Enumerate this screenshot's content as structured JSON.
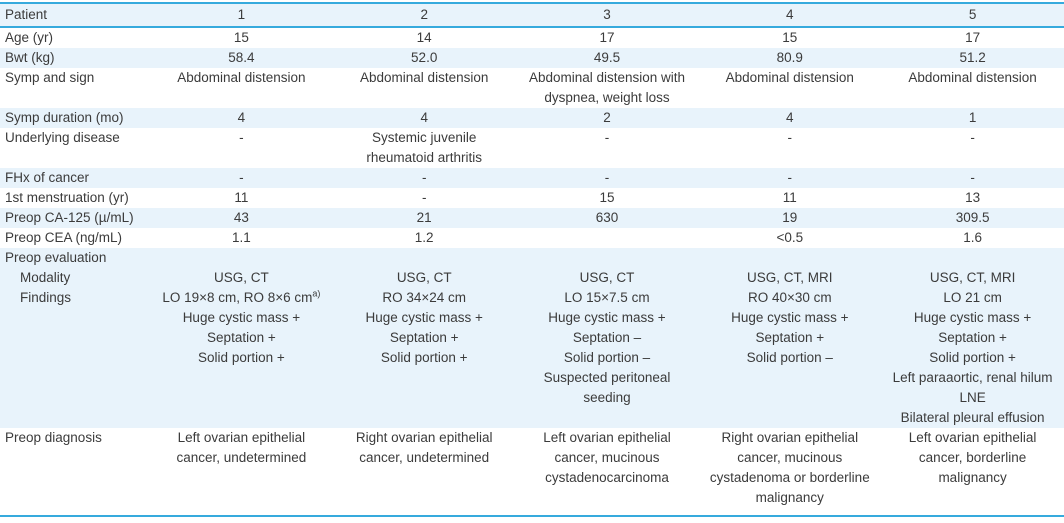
{
  "style": {
    "accent_border_color": "#36aadd",
    "stripe_background": "#e8f3fb",
    "text_color": "#3b3b3b"
  },
  "table": {
    "header": {
      "label": "Patient",
      "columns": [
        "1",
        "2",
        "3",
        "4",
        "5"
      ]
    },
    "rows": [
      {
        "label": "Age (yr)",
        "values": [
          "15",
          "14",
          "17",
          "15",
          "17"
        ]
      },
      {
        "label": "Bwt (kg)",
        "values": [
          "58.4",
          "52.0",
          "49.5",
          "80.9",
          "51.2"
        ]
      },
      {
        "label": "Symp and sign",
        "values": [
          "Abdominal distension",
          "Abdominal distension",
          "Abdominal distension with dyspnea, weight loss",
          "Abdominal distension",
          "Abdominal distension"
        ]
      },
      {
        "label": "Symp duration (mo)",
        "values": [
          "4",
          "4",
          "2",
          "4",
          "1"
        ]
      },
      {
        "label": "Underlying disease",
        "values": [
          "-",
          "Systemic juvenile rheumatoid arthritis",
          "-",
          "-",
          "-"
        ]
      },
      {
        "label": "FHx of cancer",
        "values": [
          "-",
          "-",
          "-",
          "-",
          "-"
        ]
      },
      {
        "label": "1st menstruation (yr)",
        "values": [
          "11",
          "-",
          "15",
          "11",
          "13"
        ]
      },
      {
        "label": "Preop CA-125 (µ/mL)",
        "values": [
          "43",
          "21",
          "630",
          "19",
          "309.5"
        ]
      },
      {
        "label": "Preop CEA (ng/mL)",
        "values": [
          "1.1",
          "1.2",
          "",
          "<0.5",
          "1.6"
        ]
      }
    ],
    "preop_evaluation": {
      "label": "Preop evaluation",
      "modality": {
        "label": "Modality",
        "values": [
          "USG, CT",
          "USG, CT",
          "USG, CT",
          "USG, CT, MRI",
          "USG, CT, MRI"
        ]
      },
      "findings": {
        "label": "Findings",
        "sup": "a)",
        "line1": [
          "LO 19×8 cm, RO 8×6 cm",
          "RO 34×24 cm",
          "LO 15×7.5 cm",
          "RO 40×30 cm",
          "LO 21 cm"
        ],
        "line2": [
          "Huge cystic mass +",
          "Huge cystic mass +",
          "Huge cystic mass +",
          "Huge cystic mass +",
          "Huge cystic mass +"
        ],
        "line3": [
          "Septation +",
          "Septation +",
          "Septation –",
          "Septation +",
          "Septation +"
        ],
        "line4": [
          "Solid portion +",
          "Solid portion +",
          "Solid portion –",
          "Solid portion –",
          "Solid portion +"
        ],
        "line5": [
          "",
          "",
          "Suspected peritoneal seeding",
          "",
          "Left paraaortic, renal hilum LNE"
        ],
        "line6": [
          "",
          "",
          "",
          "",
          "Bilateral pleural effusion"
        ]
      }
    },
    "diagnosis": {
      "label": "Preop diagnosis",
      "values": [
        "Left ovarian epithelial cancer, undetermined",
        "Right ovarian epithelial cancer, undetermined",
        "Left ovarian epithelial cancer, mucinous cystadenocarcinoma",
        "Right ovarian epithelial cancer, mucinous cystadenoma or borderline malignancy",
        "Left ovarian epithelial cancer, borderline malignancy"
      ]
    }
  }
}
